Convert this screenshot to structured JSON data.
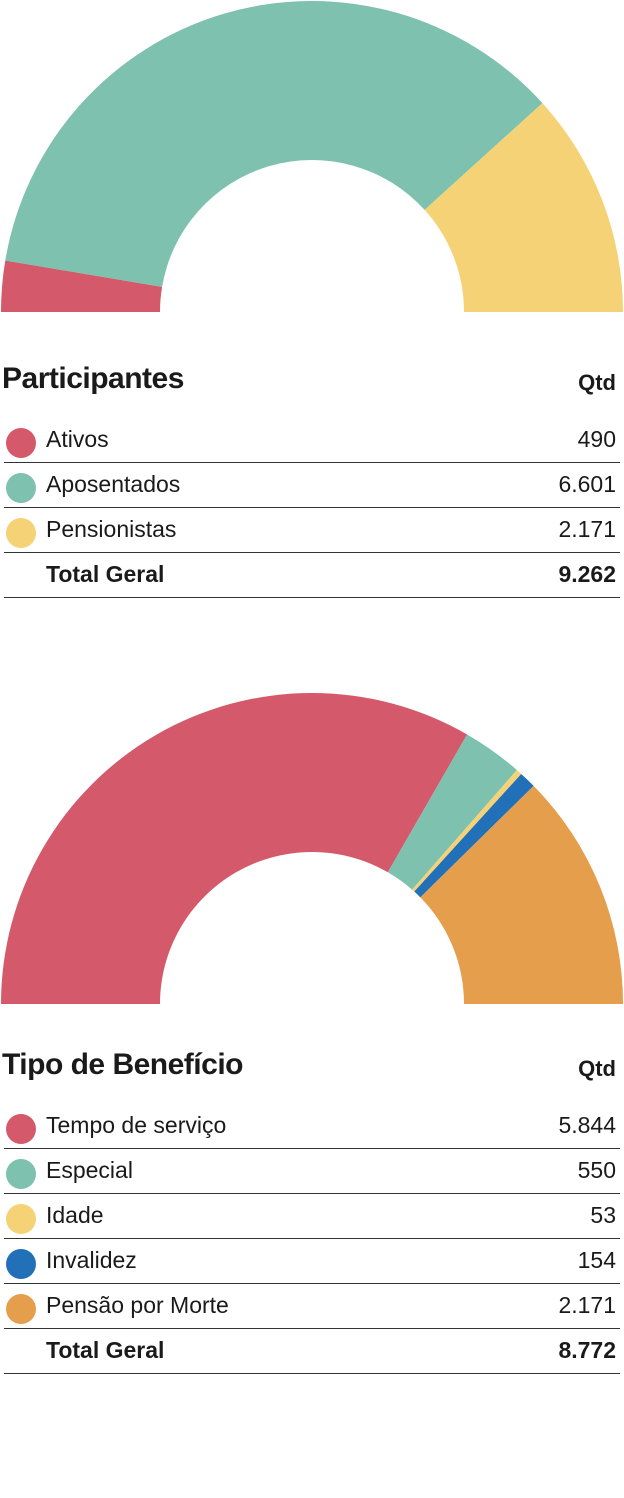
{
  "chart_data": [
    {
      "type": "pie",
      "title": "Participantes",
      "column_header": "Qtd",
      "categories": [
        "Ativos",
        "Aposentados",
        "Pensionistas"
      ],
      "values": [
        490,
        6601,
        2171
      ],
      "value_labels": [
        "490",
        "6.601",
        "2.171"
      ],
      "colors": [
        "#d45a6b",
        "#7dc1ae",
        "#f6d276"
      ],
      "total_label": "Total Geral",
      "total_value": "9.262"
    },
    {
      "type": "pie",
      "title": "Tipo de Benefício",
      "column_header": "Qtd",
      "categories": [
        "Tempo de serviço",
        "Especial",
        "Idade",
        "Invalidez",
        "Pensão por Morte"
      ],
      "values": [
        5844,
        550,
        53,
        154,
        2171
      ],
      "value_labels": [
        "5.844",
        "550",
        "53",
        "154",
        "2.171"
      ],
      "colors": [
        "#d45a6b",
        "#7dc1ae",
        "#f6d276",
        "#2270b8",
        "#e49e4c"
      ],
      "total_label": "Total Geral",
      "total_value": "8.772"
    }
  ]
}
